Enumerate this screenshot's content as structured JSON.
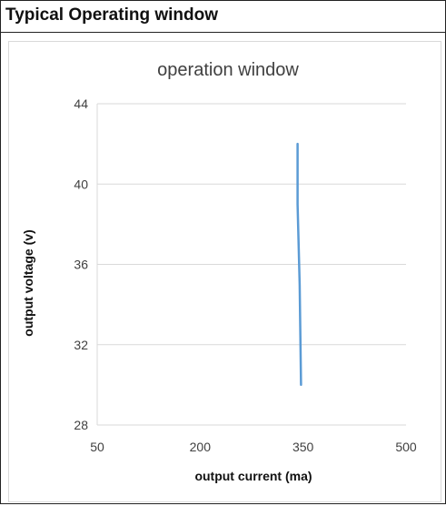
{
  "panel": {
    "title": "Typical Operating window"
  },
  "chart_data": {
    "type": "line",
    "title": "operation window",
    "xlabel": "output current (ma)",
    "ylabel": "output  voltage (v)",
    "xlim": [
      50,
      500
    ],
    "ylim": [
      28,
      44
    ],
    "x_ticks": [
      50,
      200,
      350,
      500
    ],
    "y_ticks": [
      28,
      32,
      36,
      40,
      44
    ],
    "grid": "horizontal",
    "legend": "none",
    "series": [
      {
        "color": "#5b9bd5",
        "points": [
          {
            "x": 342,
            "y": 42
          },
          {
            "x": 342,
            "y": 39
          },
          {
            "x": 345,
            "y": 35
          },
          {
            "x": 347,
            "y": 30
          }
        ]
      }
    ]
  },
  "colors": {
    "series": "#5b9bd5",
    "gridline": "#d9d9d9",
    "text": "#404040"
  }
}
